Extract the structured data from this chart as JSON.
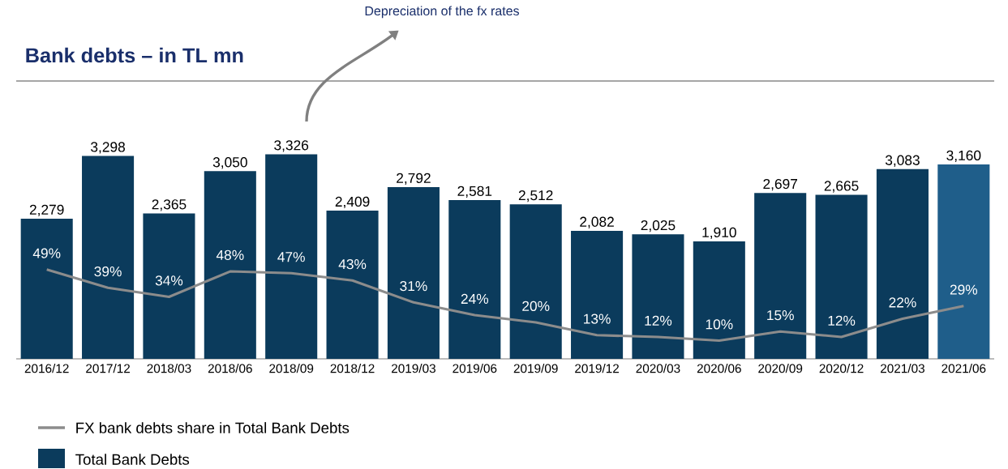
{
  "chart_data": {
    "type": "bar",
    "title": "Bank debts – in TL mn",
    "categories": [
      "2016/12",
      "2017/12",
      "2018/03",
      "2018/06",
      "2018/09",
      "2018/12",
      "2019/03",
      "2019/06",
      "2019/09",
      "2019/12",
      "2020/03",
      "2020/06",
      "2020/09",
      "2020/12",
      "2021/03",
      "2021/06"
    ],
    "series": [
      {
        "name": "Total Bank Debts",
        "values": [
          2279,
          3298,
          2365,
          3050,
          3326,
          2409,
          2792,
          2581,
          2512,
          2082,
          2025,
          1910,
          2697,
          2665,
          3083,
          3160
        ],
        "colors": [
          "#0b3b5c",
          "#0b3b5c",
          "#0b3b5c",
          "#0b3b5c",
          "#0b3b5c",
          "#0b3b5c",
          "#0b3b5c",
          "#0b3b5c",
          "#0b3b5c",
          "#0b3b5c",
          "#0b3b5c",
          "#0b3b5c",
          "#0b3b5c",
          "#0b3b5c",
          "#0b3b5c",
          "#1f5e8a"
        ],
        "value_labels": [
          "2,279",
          "3,298",
          "2,365",
          "3,050",
          "3,326",
          "2,409",
          "2,792",
          "2,581",
          "2,512",
          "2,082",
          "2,025",
          "1,910",
          "2,697",
          "2,665",
          "3,083",
          "3,160"
        ]
      },
      {
        "name": "FX bank debts share in Total Bank Debts",
        "type": "line",
        "axis": "y2",
        "color": "#8c8c8c",
        "values": [
          49,
          39,
          34,
          48,
          47,
          43,
          31,
          24,
          20,
          13,
          12,
          10,
          15,
          12,
          22,
          29
        ],
        "value_labels": [
          "49%",
          "39%",
          "34%",
          "48%",
          "47%",
          "43%",
          "31%",
          "24%",
          "20%",
          "13%",
          "12%",
          "10%",
          "15%",
          "12%",
          "22%",
          "29%"
        ]
      }
    ],
    "legend": "bottom left",
    "marker": "none",
    "annotations": [
      "Depreciation of the fx rates"
    ]
  }
}
